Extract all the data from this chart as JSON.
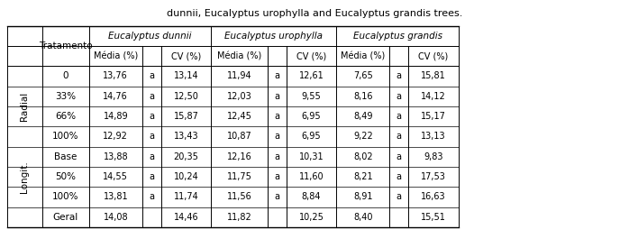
{
  "title": "dunnii, Eucalyptus urophylla and Eucalyptus grandis trees.",
  "col_groups": [
    {
      "label": "Eucalyptus dunnii",
      "italic": true
    },
    {
      "label": "Eucalyptus urophylla",
      "italic": true
    },
    {
      "label": "Eucalyptus grandis",
      "italic": true
    }
  ],
  "sub_headers": [
    "Média (%)",
    "",
    "CV (%)",
    "Média (%)",
    "",
    "CV (%)",
    "Média (%)",
    "",
    "CV (%)"
  ],
  "row_groups": [
    {
      "group_label": "Radial",
      "rows": [
        {
          "label": "0",
          "vals": [
            "13,76",
            "a",
            "13,14",
            "11,94",
            "a",
            "12,61",
            "7,65",
            "a",
            "15,81"
          ]
        },
        {
          "label": "33%",
          "vals": [
            "14,76",
            "a",
            "12,50",
            "12,03",
            "a",
            "9,55",
            "8,16",
            "a",
            "14,12"
          ]
        },
        {
          "label": "66%",
          "vals": [
            "14,89",
            "a",
            "15,87",
            "12,45",
            "a",
            "6,95",
            "8,49",
            "a",
            "15,17"
          ]
        },
        {
          "label": "100%",
          "vals": [
            "12,92",
            "a",
            "13,43",
            "10,87",
            "a",
            "6,95",
            "9,22",
            "a",
            "13,13"
          ]
        }
      ]
    },
    {
      "group_label": "Longit.",
      "rows": [
        {
          "label": "Base",
          "vals": [
            "13,88",
            "a",
            "20,35",
            "12,16",
            "a",
            "10,31",
            "8,02",
            "a",
            "9,83"
          ]
        },
        {
          "label": "50%",
          "vals": [
            "14,55",
            "a",
            "10,24",
            "11,75",
            "a",
            "11,60",
            "8,21",
            "a",
            "17,53"
          ]
        },
        {
          "label": "100%",
          "vals": [
            "13,81",
            "a",
            "11,74",
            "11,56",
            "a",
            "8,84",
            "8,91",
            "a",
            "16,63"
          ]
        }
      ]
    }
  ],
  "geral_row": {
    "label": "Geral",
    "vals": [
      "14,08",
      "",
      "14,46",
      "11,82",
      "",
      "10,25",
      "8,40",
      "",
      "15,51"
    ]
  },
  "tratamento_label": "Tratamento",
  "bg_color": "#ffffff",
  "text_color": "#000000",
  "line_color": "#000000",
  "font_size": 7.5
}
